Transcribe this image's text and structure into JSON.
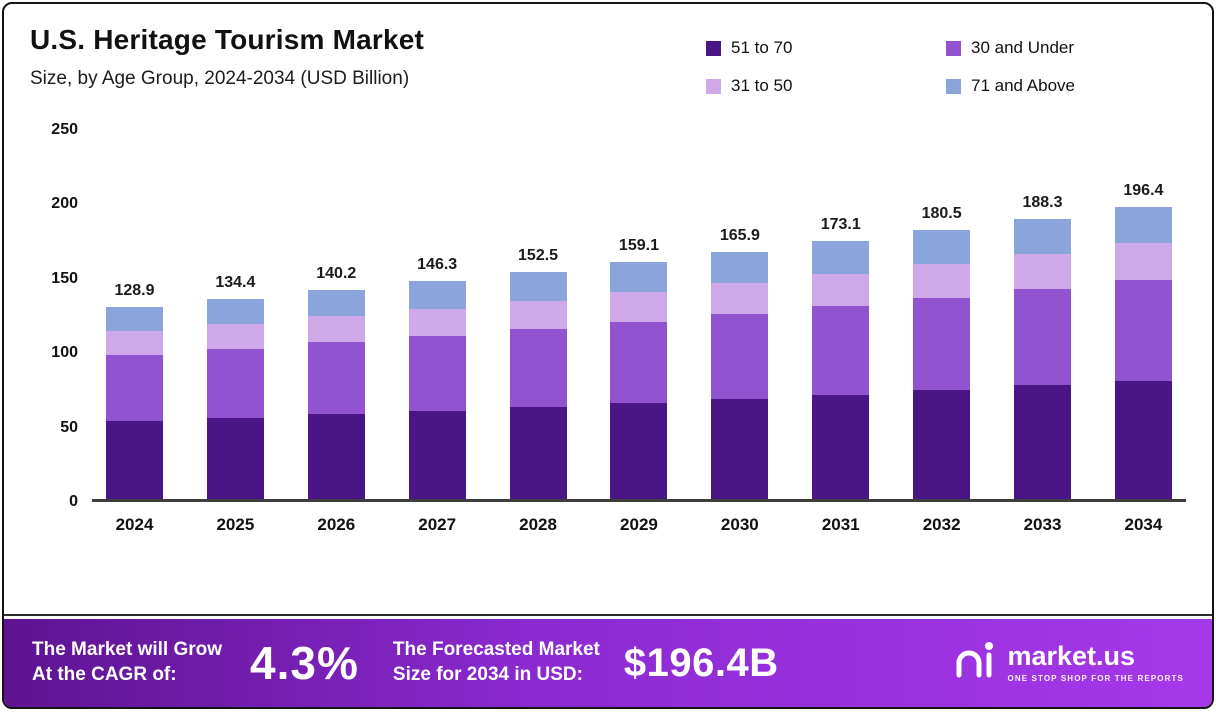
{
  "header": {
    "title": "U.S. Heritage Tourism  Market",
    "subtitle": "Size, by Age Group, 2024-2034 (USD Billion)"
  },
  "chart_data": {
    "type": "bar",
    "stacked": true,
    "title": "U.S. Heritage Tourism Market",
    "subtitle": "Size, by Age Group, 2024-2034 (USD Billion)",
    "categories": [
      "2024",
      "2025",
      "2026",
      "2027",
      "2028",
      "2029",
      "2030",
      "2031",
      "2032",
      "2033",
      "2034"
    ],
    "totals": [
      128.9,
      134.4,
      140.2,
      146.3,
      152.5,
      159.1,
      165.9,
      173.1,
      180.5,
      188.3,
      196.4
    ],
    "series": [
      {
        "name": "51 to 70",
        "color": "#4a1585",
        "values": [
          52.2,
          54.4,
          56.8,
          59.3,
          61.8,
          64.4,
          67.2,
          70.1,
          73.1,
          76.3,
          79.5
        ]
      },
      {
        "name": "30 and Under",
        "color": "#9253d0",
        "values": [
          44.4,
          46.4,
          48.4,
          50.5,
          52.6,
          54.9,
          57.2,
          59.7,
          62.3,
          65.0,
          67.8
        ]
      },
      {
        "name": "31 to 50",
        "color": "#cfa8e9",
        "values": [
          16.1,
          16.8,
          17.5,
          18.2,
          19.0,
          19.9,
          20.7,
          21.6,
          22.5,
          23.5,
          24.5
        ]
      },
      {
        "name": "71 and Above",
        "color": "#8ba5dc",
        "values": [
          16.2,
          16.8,
          17.5,
          18.3,
          19.1,
          19.9,
          20.8,
          21.7,
          22.6,
          23.5,
          24.6
        ]
      }
    ],
    "y_ticks": [
      0,
      50,
      100,
      150,
      200,
      250
    ],
    "ylim": [
      0,
      250
    ],
    "xlabel": "",
    "ylabel": "",
    "grid": false,
    "legend_position": "top-right"
  },
  "banner": {
    "cagr_label_line1": "The Market will Grow",
    "cagr_label_line2": "At the CAGR of:",
    "cagr_value": "4.3%",
    "forecast_label_line1": "The Forecasted Market",
    "forecast_label_line2": "Size for 2034 in USD:",
    "forecast_value": "$196.4B",
    "brand": "market.us",
    "brand_tagline": "ONE STOP SHOP FOR THE REPORTS",
    "gradient_left": "#5e1390",
    "gradient_right": "#a638ea"
  }
}
